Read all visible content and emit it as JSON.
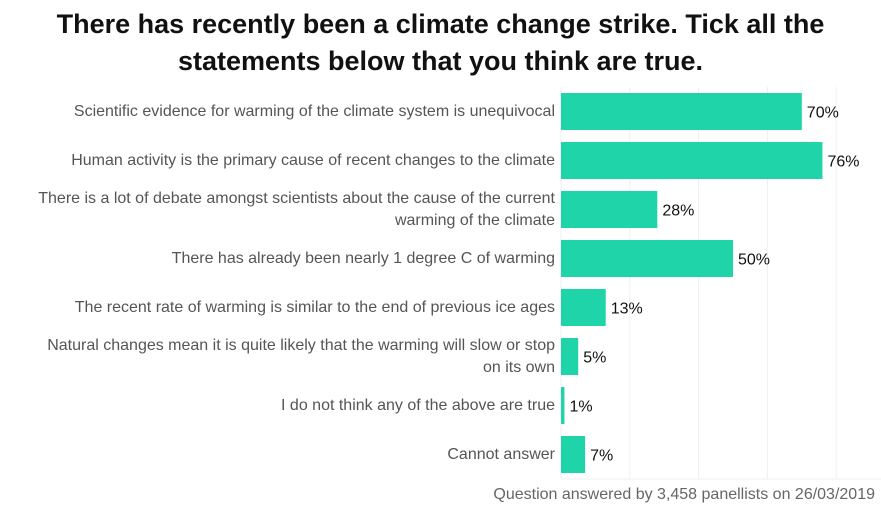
{
  "chart_data": {
    "type": "bar",
    "orientation": "horizontal",
    "title_lines": [
      "There has recently been a climate change strike.  Tick all the",
      "statements below that you think are true."
    ],
    "categories": [
      "Scientific evidence for warming of the climate system is unequivocal",
      "Human activity is the primary cause of recent changes to the climate",
      "There is a lot of debate amongst scientists about the cause of the current warming of the climate",
      "There has already been nearly 1 degree C of warming",
      "The recent rate of warming is similar to the end of previous ice ages",
      "Natural changes mean it is quite likely that the warming will slow or stop on its own",
      "I do not think any of the above are true",
      "Cannot answer"
    ],
    "values": [
      70,
      76,
      28,
      50,
      13,
      5,
      1,
      7
    ],
    "labels": [
      "70%",
      "76%",
      "28%",
      "50%",
      "13%",
      "5%",
      "1%",
      "7%"
    ],
    "xlim": [
      0,
      80
    ],
    "gridlines": [
      20,
      40,
      60,
      80
    ],
    "bar_color": "#20d4a9",
    "footer": "Question answered by 3,458 panellists on 26/03/2019"
  }
}
